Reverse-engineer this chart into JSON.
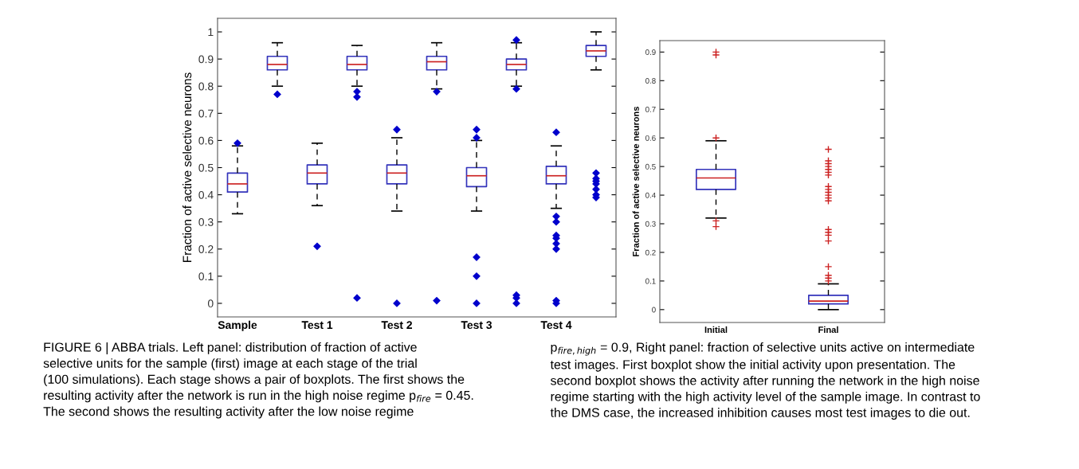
{
  "chart_data": [
    {
      "type": "box",
      "ylabel": "Fraction of active selective neurons",
      "categories": [
        "Sample",
        null,
        "Test 1",
        null,
        "Test 2",
        null,
        "Test 3",
        null,
        "Test 4",
        null
      ],
      "ylim": [
        -0.05,
        1.05
      ],
      "yticks": [
        0,
        0.1,
        0.2,
        0.3,
        0.4,
        0.5,
        0.6,
        0.7,
        0.8,
        0.9,
        1
      ],
      "marker": "diamond",
      "grid": false,
      "boxes": [
        {
          "low": 0.33,
          "q1": 0.41,
          "median": 0.44,
          "q3": 0.48,
          "high": 0.58,
          "outliers": [
            0.59
          ]
        },
        {
          "low": 0.8,
          "q1": 0.86,
          "median": 0.88,
          "q3": 0.91,
          "high": 0.96,
          "outliers": [
            0.77
          ]
        },
        {
          "low": 0.36,
          "q1": 0.44,
          "median": 0.48,
          "q3": 0.51,
          "high": 0.59,
          "outliers": [
            0.21
          ]
        },
        {
          "low": 0.8,
          "q1": 0.86,
          "median": 0.88,
          "q3": 0.91,
          "high": 0.95,
          "outliers": [
            0.78,
            0.76,
            0.02
          ]
        },
        {
          "low": 0.34,
          "q1": 0.44,
          "median": 0.48,
          "q3": 0.51,
          "high": 0.61,
          "outliers": [
            0.64,
            0.0
          ]
        },
        {
          "low": 0.79,
          "q1": 0.86,
          "median": 0.89,
          "q3": 0.91,
          "high": 0.96,
          "outliers": [
            0.78,
            0.01
          ]
        },
        {
          "low": 0.34,
          "q1": 0.43,
          "median": 0.47,
          "q3": 0.5,
          "high": 0.6,
          "outliers": [
            0.64,
            0.61,
            0.17,
            0.1,
            0.0
          ]
        },
        {
          "low": 0.8,
          "q1": 0.86,
          "median": 0.88,
          "q3": 0.9,
          "high": 0.96,
          "outliers": [
            0.97,
            0.79,
            0.03,
            0.02,
            0.0
          ]
        },
        {
          "low": 0.35,
          "q1": 0.44,
          "median": 0.47,
          "q3": 0.505,
          "high": 0.58,
          "outliers": [
            0.63,
            0.32,
            0.3,
            0.25,
            0.24,
            0.22,
            0.2,
            0.01,
            0.0
          ]
        },
        {
          "low": 0.86,
          "q1": 0.91,
          "median": 0.93,
          "q3": 0.95,
          "high": 1.0,
          "outliers": [
            0.48,
            0.46,
            0.45,
            0.44,
            0.42,
            0.4,
            0.39
          ]
        }
      ],
      "annotations": [
        "FIGURE 6 | ABBA trials. Left panel: distribution of fraction of active\nselective units for the sample (first) image at each stage of the trial\n(100 simulations). Each stage shows a pair of boxplots. The first shows the\nresulting activity after the network is run in the high noise regime p$_{fire}$ = 0.45.\nThe second shows the resulting activity after the low noise regime"
      ]
    },
    {
      "type": "box",
      "ylabel": "Fraction of active selective neurons",
      "categories": [
        "Initial",
        "Final"
      ],
      "ylim": [
        -0.045,
        0.94
      ],
      "yticks": [
        0,
        0.1,
        0.2,
        0.3,
        0.4,
        0.5,
        0.6,
        0.7,
        0.8,
        0.9
      ],
      "marker": "cross",
      "grid": false,
      "boxes": [
        {
          "low": 0.32,
          "q1": 0.42,
          "median": 0.46,
          "q3": 0.49,
          "high": 0.59,
          "outliers": [
            0.9,
            0.89,
            0.6,
            0.31,
            0.29
          ]
        },
        {
          "low": 0.0,
          "q1": 0.02,
          "median": 0.03,
          "q3": 0.05,
          "high": 0.09,
          "outliers": [
            0.56,
            0.52,
            0.51,
            0.5,
            0.49,
            0.48,
            0.47,
            0.43,
            0.42,
            0.41,
            0.4,
            0.39,
            0.38,
            0.28,
            0.27,
            0.26,
            0.24,
            0.15,
            0.12,
            0.11,
            0.1
          ]
        }
      ],
      "annotations": [
        "p$_{fire,high}$ = 0.9, Right panel: fraction of selective units active on intermediate\ntest images. First boxplot show the initial activity upon presentation. The\nsecond boxplot shows the activity after running the network in the high noise\nregime starting with the high activity level of the sample image. In contrast to\nthe DMS case, the increased inhibition causes most test images to die out."
      ]
    }
  ]
}
